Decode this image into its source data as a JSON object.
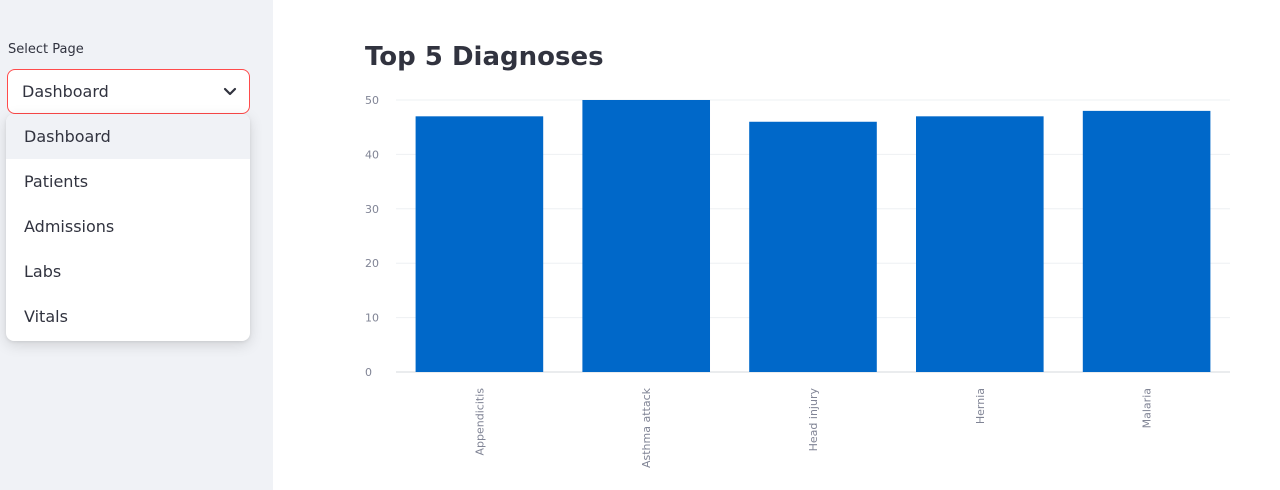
{
  "sidebar": {
    "select_label": "Select Page",
    "selected_value": "Dashboard",
    "options": [
      "Dashboard",
      "Patients",
      "Admissions",
      "Labs",
      "Vitals"
    ],
    "chevron_icon": "chevron-down-icon"
  },
  "main": {
    "title": "Top 5 Diagnoses"
  },
  "colors": {
    "bar": "#0068c9",
    "accent_border": "#ff4b4b",
    "sidebar_bg": "#f0f2f6"
  },
  "chart_data": {
    "type": "bar",
    "title": "Top 5 Diagnoses",
    "categories": [
      "Appendicitis",
      "Asthma attack",
      "Head injury",
      "Hernia",
      "Malaria"
    ],
    "values": [
      47,
      50,
      46,
      47,
      48
    ],
    "ylim": [
      0,
      50
    ],
    "yticks": [
      0,
      10,
      20,
      30,
      40,
      50
    ],
    "xlabel": "",
    "ylabel": "",
    "grid": true
  }
}
